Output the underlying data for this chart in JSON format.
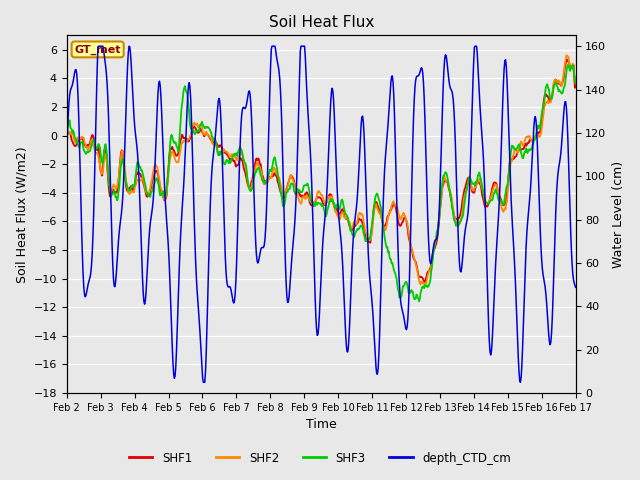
{
  "title": "Soil Heat Flux",
  "xlabel": "Time",
  "ylabel_left": "Soil Heat Flux (W/m2)",
  "ylabel_right": "Water Level (cm)",
  "ylim_left": [
    -18,
    7
  ],
  "ylim_right": [
    0,
    165
  ],
  "yticks_left": [
    -18,
    -16,
    -14,
    -12,
    -10,
    -8,
    -6,
    -4,
    -2,
    0,
    2,
    4,
    6
  ],
  "yticks_right": [
    0,
    20,
    40,
    60,
    80,
    100,
    120,
    140,
    160
  ],
  "fig_bg": "#e8e8e8",
  "plot_bg": "#e8e8e8",
  "grid_color": "white",
  "annotation_text": "GT_met",
  "annotation_bg": "#ffff99",
  "annotation_border": "#cc8800",
  "annotation_text_color": "#8b0000",
  "color_SHF1": "#dd0000",
  "color_SHF2": "#ff8800",
  "color_SHF3": "#00cc00",
  "color_CTD": "#0000dd",
  "xtick_labels": [
    "Feb 2",
    "Feb 3",
    "Feb 4",
    "Feb 5",
    "Feb 6",
    "Feb 7",
    "Feb 8",
    "Feb 9",
    "Feb 10",
    "Feb 11",
    "Feb 12",
    "Feb 13",
    "Feb 14",
    "Feb 15",
    "Feb 16",
    "Feb 17"
  ],
  "lw_shf": 1.3,
  "lw_ctd": 1.1,
  "title_fontsize": 11,
  "axis_fontsize": 9,
  "tick_fontsize": 8
}
